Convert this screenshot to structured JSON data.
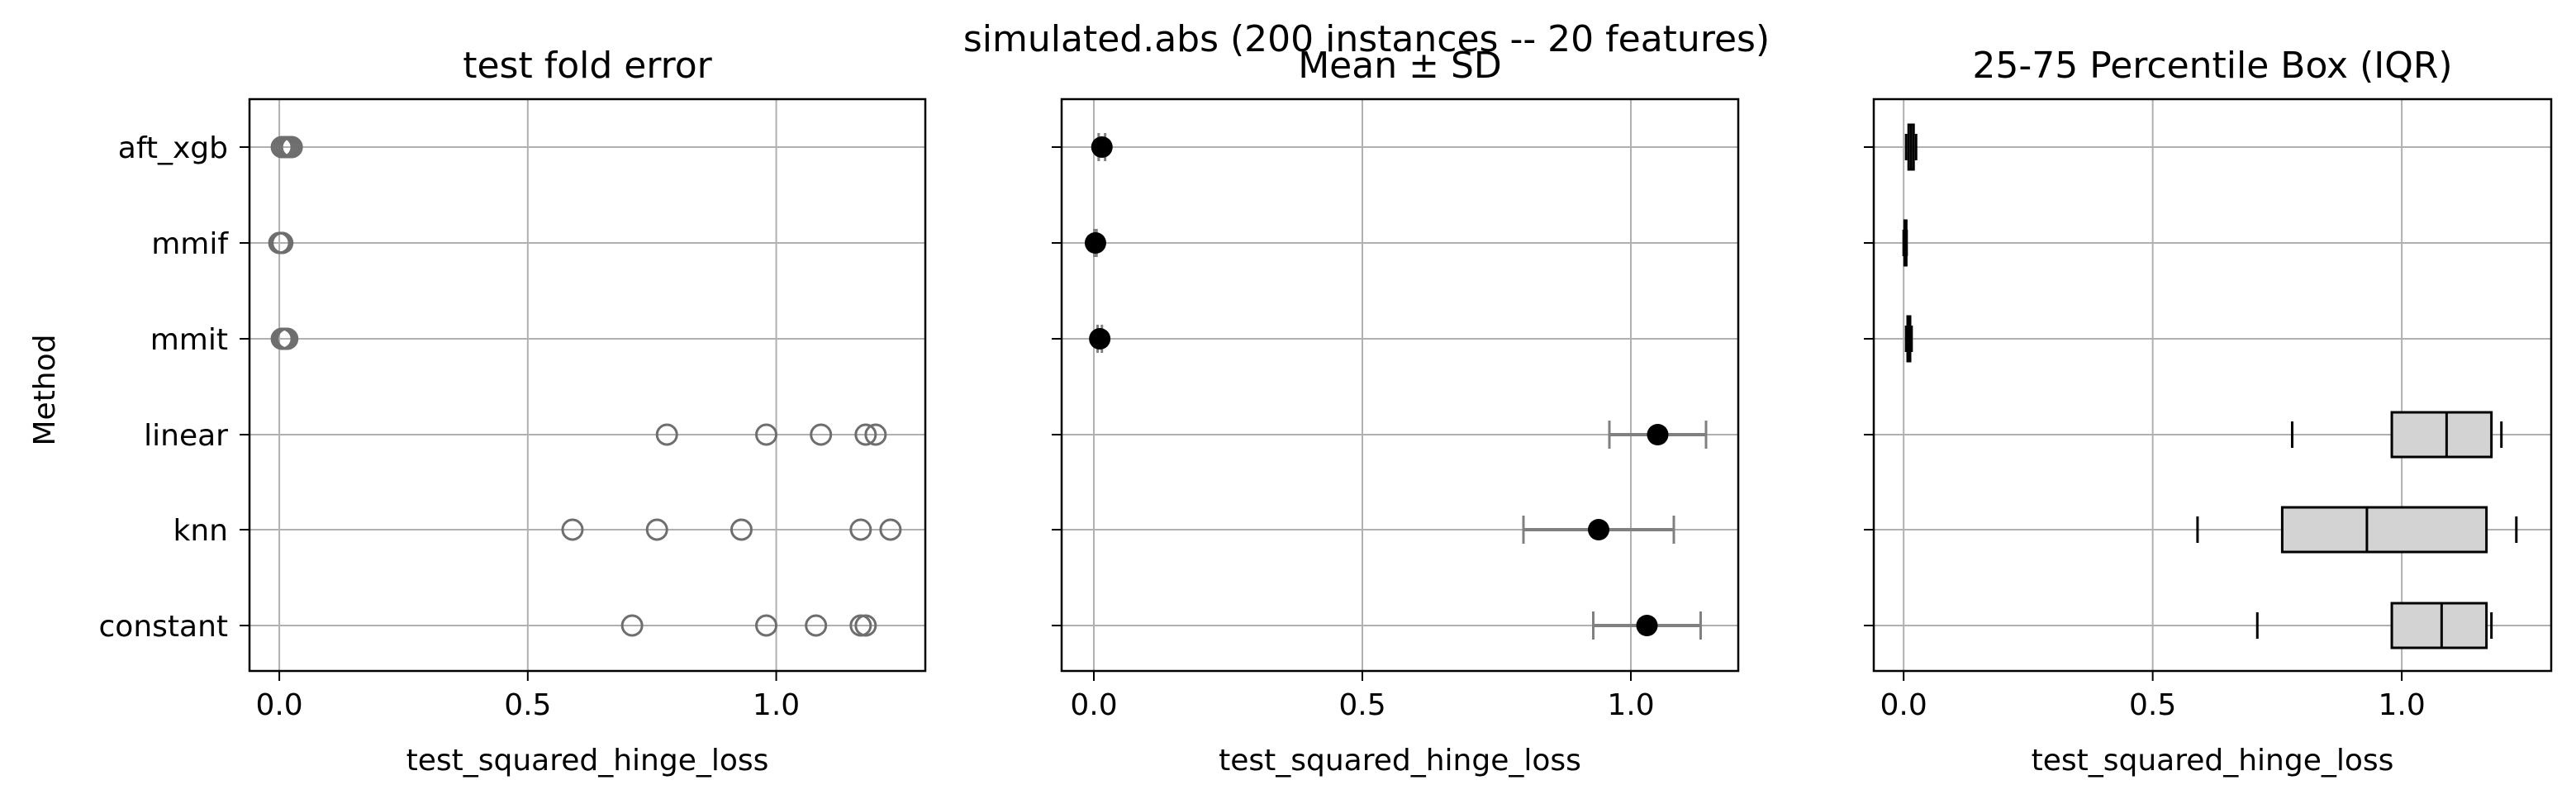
{
  "figure": {
    "suptitle": "simulated.abs (200 instances -- 20 features)",
    "ylabel": "Method",
    "methods": [
      "aft_xgb",
      "mmif",
      "mmit",
      "linear",
      "knn",
      "constant"
    ],
    "xticks": [
      "0.0",
      "0.5",
      "1.0"
    ]
  },
  "chart_data": [
    {
      "type": "scatter",
      "title": "test fold error",
      "xlabel": "test_squared_hinge_loss",
      "ylabel": "Method",
      "grid": true,
      "xlim": [
        -0.06,
        1.3
      ],
      "categories": [
        "aft_xgb",
        "mmif",
        "mmit",
        "linear",
        "knn",
        "constant"
      ],
      "points": {
        "aft_xgb": [
          0.005,
          0.01,
          0.015,
          0.02,
          0.025
        ],
        "mmif": [
          0.0,
          0.002,
          0.004,
          0.005,
          0.006
        ],
        "mmit": [
          0.005,
          0.008,
          0.01,
          0.013,
          0.016
        ],
        "linear": [
          0.78,
          0.98,
          1.09,
          1.18,
          1.2
        ],
        "knn": [
          0.59,
          0.76,
          0.93,
          1.17,
          1.23
        ],
        "constant": [
          0.71,
          0.98,
          1.08,
          1.17,
          1.18
        ]
      }
    },
    {
      "type": "errorbar",
      "title": "Mean ± SD",
      "xlabel": "test_squared_hinge_loss",
      "grid": true,
      "xlim": [
        -0.06,
        1.2
      ],
      "categories": [
        "aft_xgb",
        "mmif",
        "mmit",
        "linear",
        "knn",
        "constant"
      ],
      "mean": [
        0.015,
        0.003,
        0.011,
        1.05,
        0.94,
        1.03
      ],
      "sd": [
        0.006,
        0.002,
        0.004,
        0.09,
        0.14,
        0.1
      ]
    },
    {
      "type": "box",
      "title": "25-75 Percentile Box (IQR)",
      "xlabel": "test_squared_hinge_loss",
      "grid": true,
      "xlim": [
        -0.06,
        1.3
      ],
      "categories": [
        "aft_xgb",
        "mmif",
        "mmit",
        "linear",
        "knn",
        "constant"
      ],
      "boxes": [
        {
          "min": 0.005,
          "q1": 0.01,
          "median": 0.015,
          "q3": 0.02,
          "max": 0.025
        },
        {
          "min": 0.0,
          "q1": 0.002,
          "median": 0.004,
          "q3": 0.005,
          "max": 0.006
        },
        {
          "min": 0.005,
          "q1": 0.008,
          "median": 0.01,
          "q3": 0.013,
          "max": 0.016
        },
        {
          "min": 0.78,
          "q1": 0.98,
          "median": 1.09,
          "q3": 1.18,
          "max": 1.2
        },
        {
          "min": 0.59,
          "q1": 0.76,
          "median": 0.93,
          "q3": 1.17,
          "max": 1.23
        },
        {
          "min": 0.71,
          "q1": 0.98,
          "median": 1.08,
          "q3": 1.17,
          "max": 1.18
        }
      ],
      "box_fill": "#d3d3d3"
    }
  ],
  "colors": {
    "grid": "#b0b0b0",
    "marker_edge": "#6e6e6e",
    "errorbar": "#808080",
    "mean_point": "#000000"
  }
}
